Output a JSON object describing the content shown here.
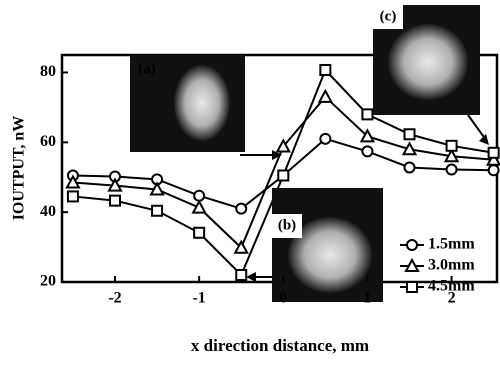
{
  "chart_data": {
    "type": "line",
    "xlabel": "x direction distance, mm",
    "ylabel": "IOUTPUT, nW",
    "x": [
      -2.5,
      -2,
      -1.5,
      -1,
      -0.5,
      0,
      0.5,
      1,
      1.5,
      2,
      2.5
    ],
    "series": [
      {
        "name": "1.5mm",
        "color": "#000000",
        "marker": "circle",
        "values": [
          50.5,
          50.2,
          49.4,
          44.7,
          41,
          50.5,
          61,
          57.4,
          52.8,
          52.2,
          52
        ]
      },
      {
        "name": "3.0mm",
        "color": "#000000",
        "marker": "triangle",
        "values": [
          48.5,
          47.6,
          46.5,
          41.3,
          29.8,
          58.8,
          73,
          61.7,
          58,
          56,
          55
        ]
      },
      {
        "name": "4.5mm",
        "color": "#000000",
        "marker": "square",
        "values": [
          44.5,
          43.3,
          40.4,
          34.1,
          22,
          50.5,
          80.7,
          68,
          62.3,
          59,
          57
        ]
      }
    ],
    "xlim": [
      -2.63,
      2.54
    ],
    "ylim": [
      20,
      85
    ],
    "xticks": [
      -2,
      -1,
      0,
      1,
      2
    ],
    "yticks": [
      20,
      40,
      60,
      80
    ],
    "annotations": [
      "(a)",
      "(b)",
      "(c)"
    ]
  }
}
